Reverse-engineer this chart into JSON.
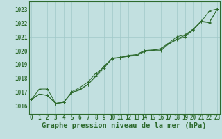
{
  "title": "Graphe pression niveau de la mer (hPa)",
  "bg_color": "#c2e0e0",
  "grid_color": "#a0c8c8",
  "line_color": "#2d6a2d",
  "x_ticks": [
    0,
    1,
    2,
    3,
    4,
    5,
    6,
    7,
    8,
    9,
    10,
    11,
    12,
    13,
    14,
    15,
    16,
    17,
    18,
    19,
    20,
    21,
    22,
    23
  ],
  "y_ticks": [
    1016,
    1017,
    1018,
    1019,
    1020,
    1021,
    1022,
    1023
  ],
  "xlim": [
    -0.3,
    23.3
  ],
  "ylim": [
    1015.4,
    1023.6
  ],
  "series": [
    [
      1016.45,
      1016.85,
      1016.75,
      1016.18,
      1016.25,
      1016.95,
      1017.2,
      1017.55,
      1018.15,
      1018.75,
      1019.45,
      1019.5,
      1019.6,
      1019.65,
      1019.95,
      1020.02,
      1020.02,
      1020.5,
      1020.82,
      1021.02,
      1021.52,
      1022.12,
      1022.9,
      1023.05
    ],
    [
      1016.45,
      1016.85,
      1016.75,
      1016.18,
      1016.25,
      1016.95,
      1017.15,
      1017.55,
      1018.2,
      1018.9,
      1019.42,
      1019.52,
      1019.62,
      1019.72,
      1020.02,
      1020.07,
      1020.12,
      1020.52,
      1020.87,
      1021.12,
      1021.52,
      1022.12,
      1022.05,
      1023.05
    ],
    [
      1016.45,
      1017.22,
      1017.22,
      1016.18,
      1016.25,
      1017.02,
      1017.32,
      1017.72,
      1018.37,
      1018.82,
      1019.47,
      1019.52,
      1019.67,
      1019.72,
      1020.02,
      1020.02,
      1020.17,
      1020.57,
      1021.02,
      1021.17,
      1021.57,
      1022.17,
      1022.07,
      1023.05
    ]
  ],
  "title_fontsize": 7.5,
  "tick_fontsize": 5.5,
  "font_family": "monospace"
}
